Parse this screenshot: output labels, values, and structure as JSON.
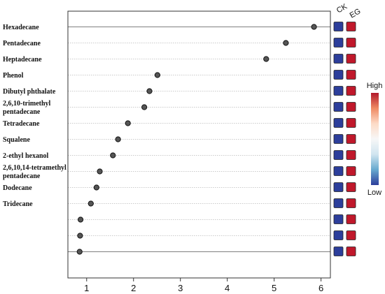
{
  "chart_data": {
    "type": "scatter",
    "categories": [
      "Hexadecane",
      "Pentadecane",
      "Heptadecane",
      "Phenol",
      "Dibutyl phthalate",
      "2,6,10-trimethyl pentadecane",
      "Tetradecane",
      "Squalene",
      "2-ethyl hexanol",
      "2,6,10,14-tetramethyl pentadecane",
      "Dodecane",
      "Tridecane",
      "",
      "",
      ""
    ],
    "values": [
      5.85,
      5.25,
      4.83,
      2.51,
      2.34,
      2.23,
      1.88,
      1.67,
      1.56,
      1.28,
      1.21,
      1.09,
      0.87,
      0.86,
      0.85
    ],
    "xlim": [
      0.6,
      6.2
    ],
    "xticks": [
      "1",
      "2",
      "3",
      "4",
      "5",
      "6"
    ],
    "grid": "horizontal dotted lines at each row",
    "title": "",
    "xlabel": "",
    "ylabel": "",
    "heatmap": {
      "columns": [
        "CK",
        "EG"
      ],
      "column_colors": [
        "#2c3e9b",
        "#c0182b"
      ]
    },
    "legend": {
      "position": "right",
      "high_label": "High",
      "low_label": "Low",
      "colors": [
        "#b2182b",
        "#ef8a62",
        "#fddbc7",
        "#f7f7f7",
        "#d1e5f0",
        "#67a9cf",
        "#2c3e9b"
      ]
    }
  }
}
